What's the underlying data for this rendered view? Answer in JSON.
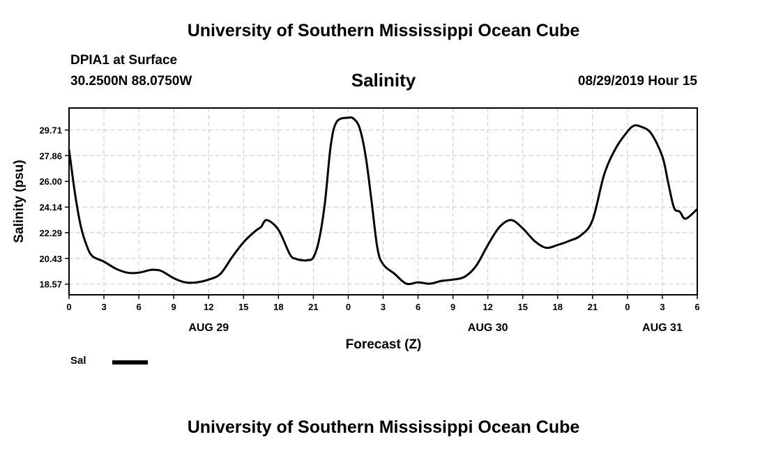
{
  "header": {
    "title": "University of Southern Mississippi Ocean Cube",
    "station": "DPIA1 at Surface",
    "coords": "30.2500N 88.0750W",
    "variable": "Salinity",
    "datetime": "08/29/2019 Hour 15"
  },
  "footer": {
    "title": "University of Southern Mississippi Ocean Cube"
  },
  "legend": {
    "label": "Sal",
    "color": "#000000"
  },
  "chart_data": {
    "type": "line",
    "xlabel": "Forecast (Z)",
    "ylabel": "Salinity (psu)",
    "x_range_hours": [
      0,
      54
    ],
    "ylim": [
      17.8,
      31.3
    ],
    "grid": true,
    "legend_position": "bottom-left",
    "y_ticks": [
      "18.57",
      "20.43",
      "22.29",
      "24.14",
      "26.00",
      "27.86",
      "29.71"
    ],
    "x_ticks": [
      "0",
      "3",
      "6",
      "9",
      "12",
      "15",
      "18",
      "21",
      "0",
      "3",
      "6",
      "9",
      "12",
      "15",
      "18",
      "21",
      "0",
      "3",
      "6"
    ],
    "date_labels": [
      {
        "label": "AUG 29",
        "tick": 4
      },
      {
        "label": "AUG 30",
        "tick": 12
      },
      {
        "label": "AUG 31",
        "tick": 17
      }
    ],
    "series": [
      {
        "name": "Sal",
        "color": "#000000",
        "x": [
          0,
          0.5,
          1,
          1.5,
          2,
          3,
          4,
          5,
          6,
          7,
          7.5,
          8,
          9,
          10,
          11,
          12,
          13,
          14,
          15,
          16,
          16.5,
          17,
          18,
          19,
          19.5,
          20,
          20.5,
          21,
          21.5,
          22,
          22.5,
          23,
          24,
          24.5,
          25,
          25.5,
          26,
          26.5,
          27,
          28,
          29,
          30,
          31,
          32,
          33,
          34,
          35,
          36,
          37,
          38,
          39,
          40,
          41,
          42,
          43,
          44,
          45,
          46,
          47,
          48,
          48.5,
          49,
          50,
          51,
          51.5,
          52,
          52.5,
          53,
          54
        ],
        "y": [
          28.3,
          25.2,
          22.8,
          21.4,
          20.6,
          20.2,
          19.7,
          19.4,
          19.4,
          19.6,
          19.6,
          19.5,
          19.0,
          18.7,
          18.7,
          18.9,
          19.3,
          20.5,
          21.6,
          22.4,
          22.7,
          23.2,
          22.5,
          20.7,
          20.4,
          20.3,
          20.3,
          20.5,
          21.8,
          24.5,
          28.6,
          30.3,
          30.6,
          30.5,
          29.8,
          27.8,
          24.6,
          21.2,
          20.0,
          19.3,
          18.6,
          18.7,
          18.6,
          18.8,
          18.9,
          19.1,
          19.9,
          21.4,
          22.7,
          23.2,
          22.6,
          21.7,
          21.2,
          21.4,
          21.7,
          22.1,
          23.2,
          26.5,
          28.4,
          29.6,
          30.0,
          30.0,
          29.5,
          27.8,
          25.9,
          24.1,
          23.8,
          23.3,
          24.0
        ]
      }
    ]
  }
}
